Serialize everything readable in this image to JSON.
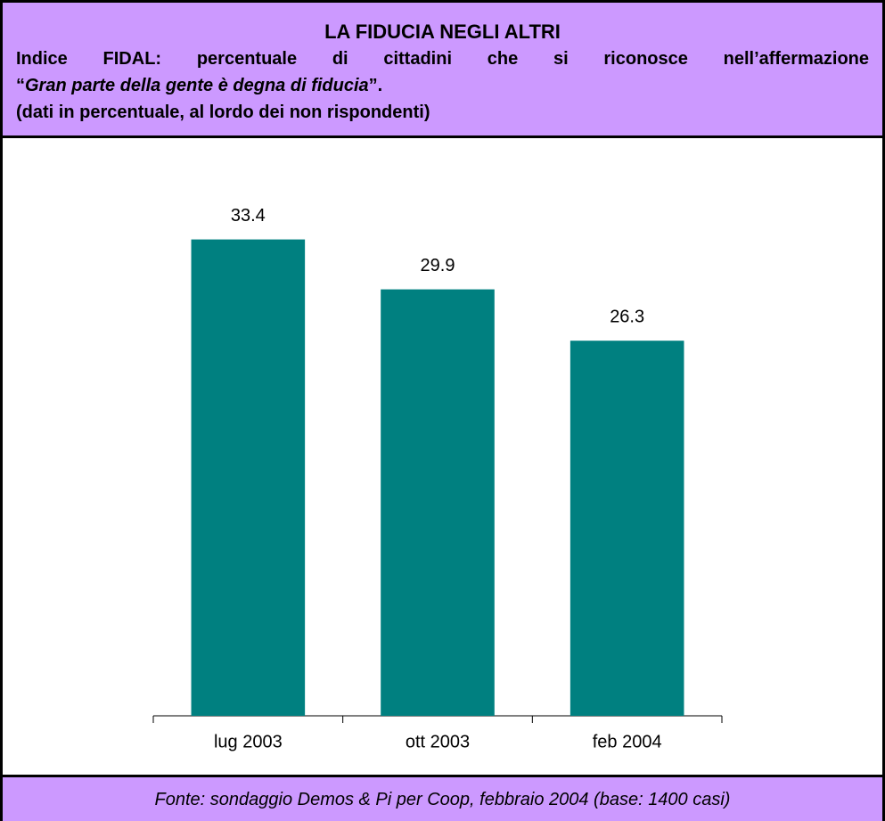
{
  "chart_data": {
    "type": "bar",
    "title": "LA FIDUCIA NEGLI ALTRI",
    "subtitle": "Indice FIDAL: percentuale di cittadini che si riconosce nell’affermazione",
    "quote": {
      "open": "“",
      "text": "Gran parte della gente è degna di fiducia",
      "close": "”."
    },
    "note": "(dati in percentuale, al lordo dei non rispondenti)",
    "source": "Fonte: sondaggio Demos & Pi per Coop, febbraio 2004 (base: 1400 casi)",
    "categories": [
      "lug 2003",
      "ott 2003",
      "feb 2004"
    ],
    "values": [
      33.4,
      29.9,
      26.3
    ],
    "color": "#008080",
    "ylim": [
      0,
      40
    ]
  }
}
